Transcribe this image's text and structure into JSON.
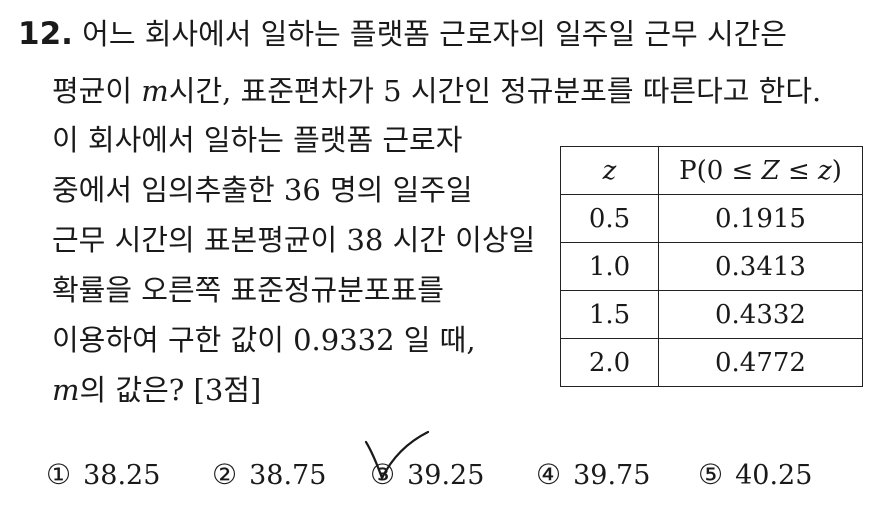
{
  "problem": {
    "number": "12.",
    "line1_text": "어느 회사에서 일하는 플랫폼 근로자의 일주일 근무 시간은",
    "line2_a": "평균이 ",
    "line2_m": "m",
    "line2_b": "시간, 표준편차가 5 시간인 정규분포를 따른다고 한다.",
    "line3": "이 회사에서 일하는 플랫폼 근로자",
    "line4": "중에서 임의추출한 36 명의 일주일",
    "line5": "근무 시간의 표본평균이 38 시간 이상일",
    "line6": "확률을 오른쪽 표준정규분포표를",
    "line7": "이용하여 구한 값이 0.9332 일 때,",
    "line8_m": "m",
    "line8_rest": "의 값은? [3점]"
  },
  "table": {
    "header_z": "z",
    "header_p_pre": "P(0 ≤ ",
    "header_p_Z": "Z",
    "header_p_mid": " ≤ ",
    "header_p_z": "z",
    "header_p_post": ")",
    "rows": [
      {
        "z": "0.5",
        "p": "0.1915"
      },
      {
        "z": "1.0",
        "p": "0.3413"
      },
      {
        "z": "1.5",
        "p": "0.4332"
      },
      {
        "z": "2.0",
        "p": "0.4772"
      }
    ]
  },
  "choices": [
    {
      "mark": "①",
      "value": "38.25"
    },
    {
      "mark": "②",
      "value": "38.75"
    },
    {
      "mark": "③",
      "value": "39.25"
    },
    {
      "mark": "④",
      "value": "39.75"
    },
    {
      "mark": "⑤",
      "value": "40.25"
    }
  ],
  "colors": {
    "text": "#1a1a1a",
    "checkmark": "#1a1a1a"
  },
  "annotation": {
    "checkmark_on_choice": 3
  }
}
